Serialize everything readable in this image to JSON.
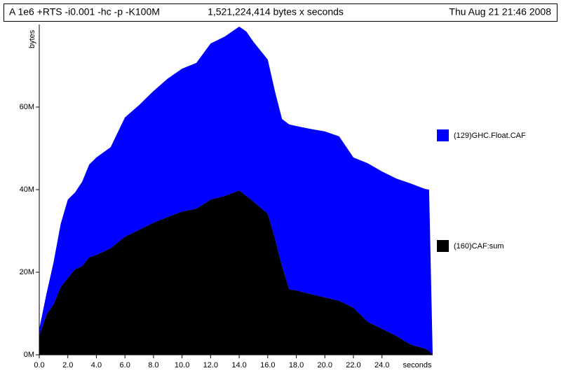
{
  "chart_data": {
    "type": "stacked-area",
    "header": {
      "program": "A 1e6 +RTS -i0.001 -hc -p -K100M",
      "total": "1,521,224,414 bytes x seconds",
      "date": "Thu Aug 21 21:46 2008"
    },
    "y_label": "bytes",
    "x_label": "seconds",
    "x": [
      0,
      0.5,
      1,
      1.5,
      2,
      2.5,
      3,
      3.5,
      4,
      5,
      6,
      7,
      8,
      9,
      10,
      11,
      12,
      13,
      14,
      14.5,
      15,
      16,
      16.5,
      17,
      17.5,
      18,
      19,
      20,
      21,
      22,
      23,
      24,
      25,
      26,
      27,
      27.3,
      27.55
    ],
    "series": [
      {
        "name": "(160)CAF:sum",
        "color": "#000000",
        "values": [
          4.6,
          9.7,
          12.2,
          16.4,
          18.6,
          20.7,
          21.5,
          23.6,
          24.2,
          25.8,
          28.6,
          30.3,
          32.0,
          33.4,
          34.7,
          35.4,
          37.6,
          38.5,
          39.8,
          38.5,
          37.1,
          34.2,
          28.3,
          21.5,
          15.9,
          15.6,
          14.7,
          13.9,
          13.1,
          11.4,
          8.0,
          6.3,
          4.6,
          2.5,
          1.5,
          1.0,
          0
        ]
      },
      {
        "name": "(129)GHC.Float.CAF",
        "color": "#0000ff",
        "values": [
          1.7,
          5.0,
          10.2,
          15.3,
          19.0,
          18.6,
          20.4,
          22.5,
          23.6,
          24.5,
          28.9,
          30.2,
          31.9,
          33.5,
          34.6,
          35.3,
          37.8,
          38.6,
          39.7,
          39.8,
          38.7,
          37.3,
          35.6,
          35.6,
          39.9,
          39.8,
          40.0,
          40.2,
          39.8,
          36.4,
          38.4,
          38.1,
          38.1,
          39.0,
          38.7,
          39.0,
          0
        ]
      }
    ],
    "xlim": [
      0,
      27.55
    ],
    "ylim": [
      0,
      80
    ],
    "xticks": [
      {
        "value": 0,
        "label": "0.0"
      },
      {
        "value": 2,
        "label": "2.0"
      },
      {
        "value": 4,
        "label": "4.0"
      },
      {
        "value": 6,
        "label": "6.0"
      },
      {
        "value": 8,
        "label": "8.0"
      },
      {
        "value": 10,
        "label": "10.0"
      },
      {
        "value": 12,
        "label": "12.0"
      },
      {
        "value": 14,
        "label": "14.0"
      },
      {
        "value": 16,
        "label": "16.0"
      },
      {
        "value": 18,
        "label": "18.0"
      },
      {
        "value": 20,
        "label": "20.0"
      },
      {
        "value": 22,
        "label": "22.0"
      },
      {
        "value": 24,
        "label": "24.0"
      }
    ],
    "yticks": [
      {
        "value": 0,
        "label": "0M"
      },
      {
        "value": 20,
        "label": "20M"
      },
      {
        "value": 40,
        "label": "40M"
      },
      {
        "value": 60,
        "label": "60M"
      }
    ]
  }
}
